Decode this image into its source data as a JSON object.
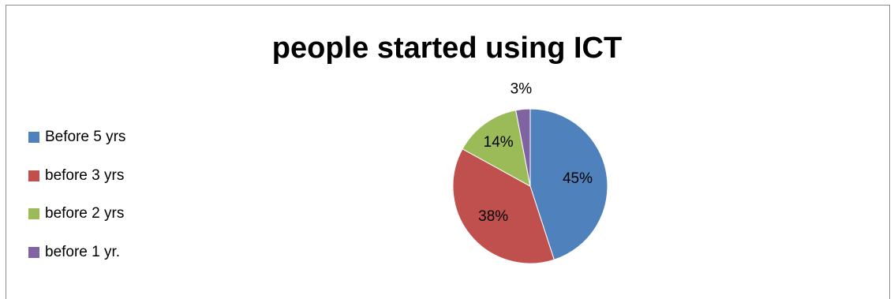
{
  "chart_data": {
    "type": "pie",
    "title": "people started using ICT",
    "legend_position": "left",
    "slices": [
      {
        "label": "Before 5 yrs",
        "value": 45,
        "display": "45%",
        "color": "#4F81BD"
      },
      {
        "label": "before 3 yrs",
        "value": 38,
        "display": "38%",
        "color": "#C0504D"
      },
      {
        "label": "before 2 yrs",
        "value": 14,
        "display": "14%",
        "color": "#9BBB59"
      },
      {
        "label": "before 1 yr.",
        "value": 3,
        "display": "3%",
        "color": "#8064A2"
      }
    ]
  }
}
